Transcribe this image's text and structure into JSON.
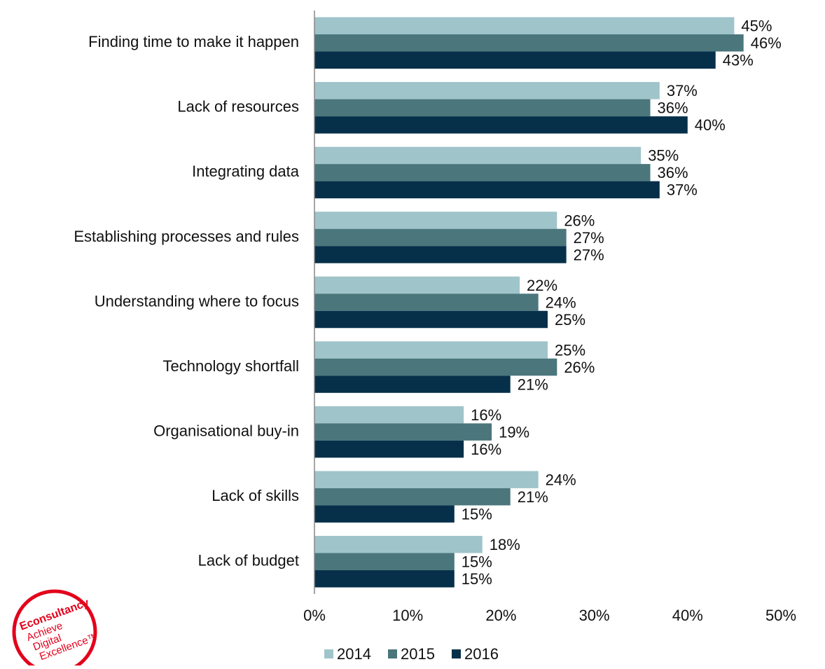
{
  "chart_data": {
    "type": "bar",
    "orientation": "horizontal",
    "categories": [
      "Finding time to make it happen",
      "Lack of resources",
      "Integrating data",
      "Establishing processes and rules",
      "Understanding where to focus",
      "Technology shortfall",
      "Organisational buy-in",
      "Lack of skills",
      "Lack of budget"
    ],
    "series": [
      {
        "name": "2014",
        "color": "#9fc4ca",
        "values": [
          45,
          37,
          35,
          26,
          22,
          25,
          16,
          24,
          18
        ],
        "value_labels": [
          "45%",
          "37%",
          "35%",
          "26%",
          "22%",
          "25%",
          "16%",
          "24%",
          "18%"
        ]
      },
      {
        "name": "2015",
        "color": "#4a767c",
        "values": [
          46,
          36,
          36,
          27,
          24,
          26,
          19,
          21,
          15
        ],
        "value_labels": [
          "46%",
          "36%",
          "36%",
          "27%",
          "24%",
          "26%",
          "19%",
          "21%",
          "15%"
        ]
      },
      {
        "name": "2016",
        "color": "#06304a",
        "values": [
          43,
          40,
          37,
          27,
          25,
          21,
          16,
          15,
          15
        ],
        "value_labels": [
          "43%",
          "40%",
          "37%",
          "27%",
          "25%",
          "21%",
          "16%",
          "15%",
          "15%"
        ]
      }
    ],
    "xlim": [
      0,
      50
    ],
    "xticks": [
      {
        "value": 0,
        "label": "0%"
      },
      {
        "value": 10,
        "label": "10%"
      },
      {
        "value": 20,
        "label": "20%"
      },
      {
        "value": 30,
        "label": "30%"
      },
      {
        "value": 40,
        "label": "40%"
      },
      {
        "value": 50,
        "label": "50%"
      }
    ],
    "grid": false,
    "legend": "bottom"
  },
  "logo": {
    "brand": "Econsultancy",
    "tagline": [
      "Achieve",
      "Digital",
      "Excellence™"
    ]
  }
}
